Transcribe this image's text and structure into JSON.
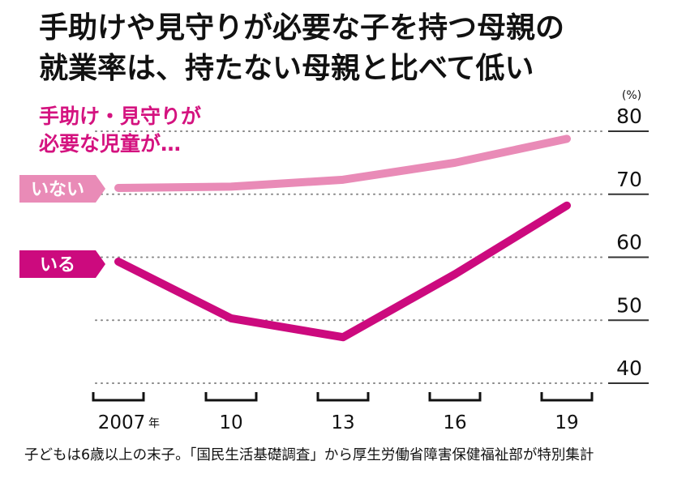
{
  "title_lines": [
    "手助けや見守りが必要な子を持つ母親の",
    "就業率は、持たない母親と比べて低い"
  ],
  "legend_heading": [
    "手助け・見守りが",
    "必要な児童が…"
  ],
  "source": "子どもは6歳以上の末子。「国民生活基礎調査」から厚生労働省障害保健福祉部が特別集計",
  "colors": {
    "inai": "#e98bb7",
    "iru": "#cc0a7e",
    "heading": "#d4127f",
    "grid": "#888888"
  },
  "chart_data": {
    "type": "line",
    "x": [
      "2007",
      "10",
      "13",
      "16",
      "19"
    ],
    "x_suffix_first": "年",
    "yunit": "(%)",
    "ylim": [
      40,
      80
    ],
    "yticks": [
      80,
      70,
      60,
      50,
      40
    ],
    "grid": true,
    "series": [
      {
        "name": "いない",
        "values": [
          71.0,
          71.2,
          72.3,
          75.0,
          78.8
        ]
      },
      {
        "name": "いる",
        "values": [
          59.3,
          50.3,
          47.3,
          57.3,
          68.2
        ]
      }
    ]
  }
}
